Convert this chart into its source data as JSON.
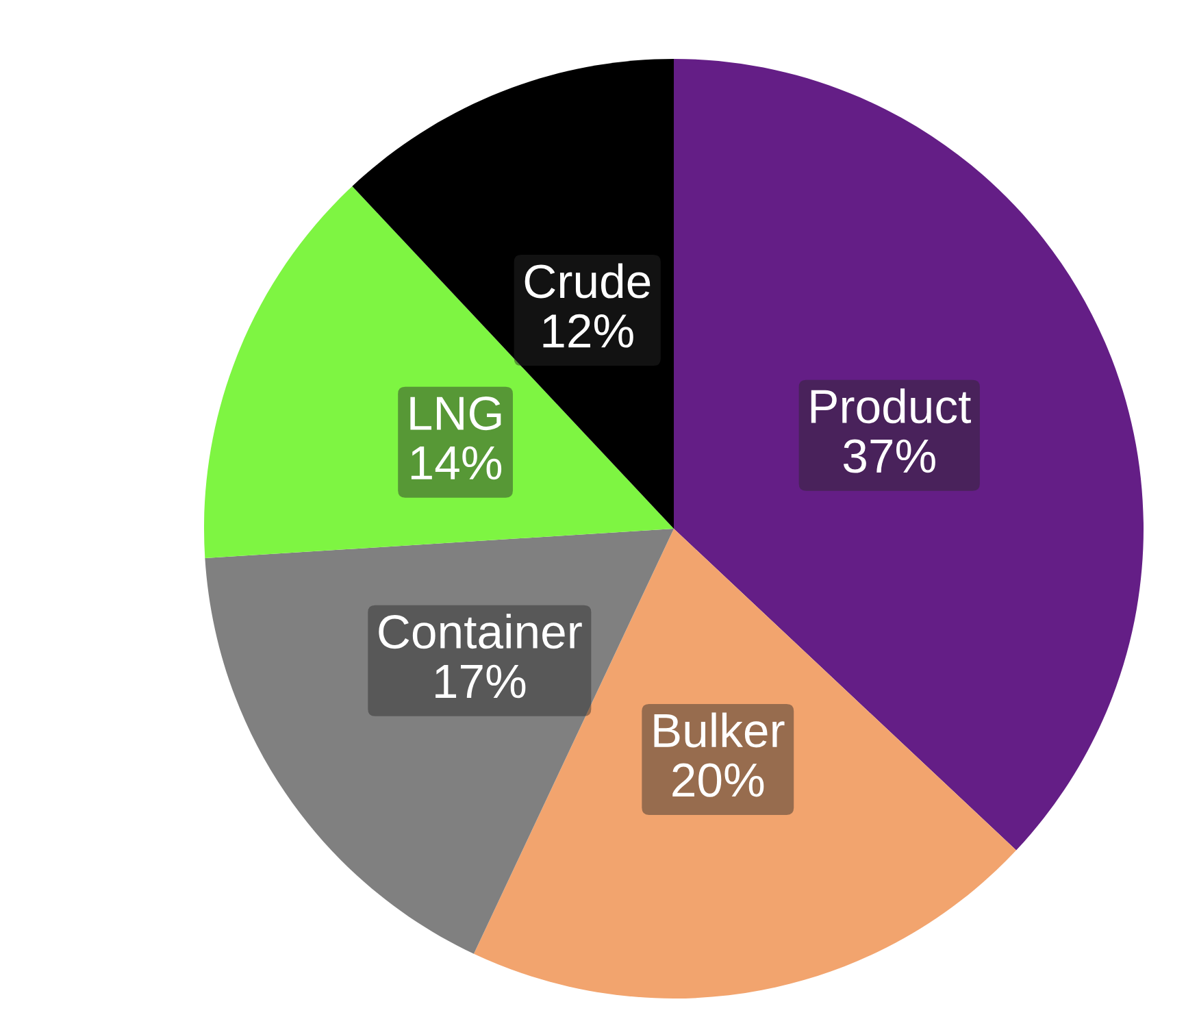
{
  "chart_data": {
    "type": "pie",
    "categories": [
      "Product",
      "Bulker",
      "Container",
      "LNG",
      "Crude"
    ],
    "values": [
      37,
      20,
      17,
      14,
      12
    ],
    "value_labels": [
      "37%",
      "20%",
      "17%",
      "14%",
      "12%"
    ],
    "colors": [
      "#641e86",
      "#f2a46e",
      "#808080",
      "#7ef542",
      "#000000"
    ],
    "legend": false
  }
}
